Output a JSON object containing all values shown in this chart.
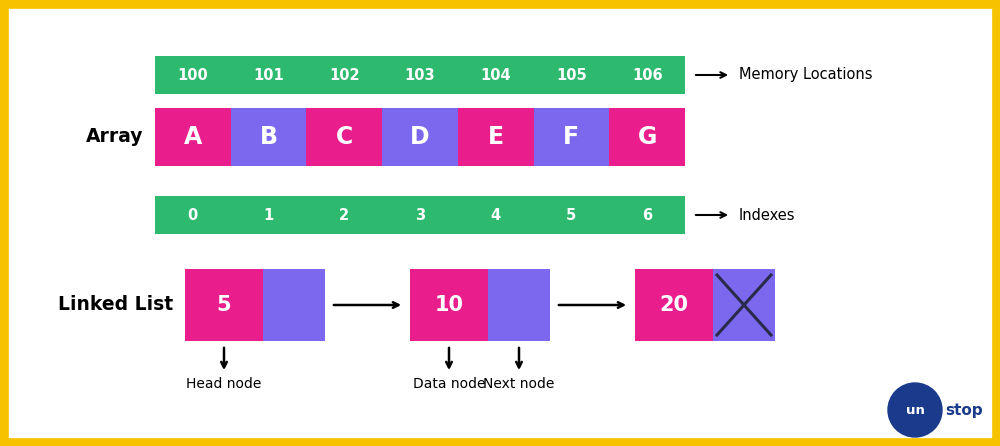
{
  "bg_color": "#ffffff",
  "border_color": "#f7c200",
  "green_color": "#2dba6e",
  "pink_color": "#e91e8c",
  "purple_color": "#7b68ee",
  "dark_blue": "#1a3a8c",
  "text_white": "#ffffff",
  "text_dark": "#222222",
  "memory_labels": [
    "100",
    "101",
    "102",
    "103",
    "104",
    "105",
    "106"
  ],
  "array_labels": [
    "A",
    "B",
    "C",
    "D",
    "E",
    "F",
    "G"
  ],
  "array_colors": [
    "#e91e8c",
    "#7b68ee",
    "#e91e8c",
    "#7b68ee",
    "#e91e8c",
    "#7b68ee",
    "#e91e8c"
  ],
  "index_labels": [
    "0",
    "1",
    "2",
    "3",
    "4",
    "5",
    "6"
  ],
  "memory_row_label": "Memory Locations",
  "index_row_label": "Indexes",
  "array_section_label": "Array",
  "linked_list_label": "Linked List",
  "ll_values": [
    "5",
    "10",
    "20"
  ],
  "ll_node_labels": [
    "Head node",
    "Data node",
    "Next node"
  ],
  "unstop_circle_color": "#1a3a8c",
  "unstop_text": "unstop",
  "figsize": [
    10.0,
    4.46
  ],
  "dpi": 100
}
